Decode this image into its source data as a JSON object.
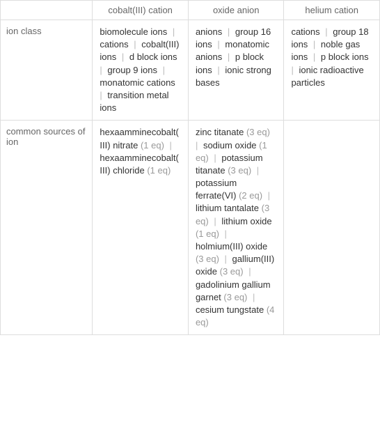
{
  "headers": {
    "col1": "cobalt(III) cation",
    "col2": "oxide anion",
    "col3": "helium cation"
  },
  "rows": {
    "ion_class": {
      "label": "ion class",
      "col1": [
        {
          "text": "biomolecule ions"
        },
        {
          "text": "cations"
        },
        {
          "text": "cobalt(III) ions"
        },
        {
          "text": "d block ions"
        },
        {
          "text": "group 9 ions"
        },
        {
          "text": "monatomic cations"
        },
        {
          "text": "transition metal ions"
        }
      ],
      "col2": [
        {
          "text": "anions"
        },
        {
          "text": "group 16 ions"
        },
        {
          "text": "monatomic anions"
        },
        {
          "text": "p block ions"
        },
        {
          "text": "ionic strong bases"
        }
      ],
      "col3": [
        {
          "text": "cations"
        },
        {
          "text": "group 18 ions"
        },
        {
          "text": "noble gas ions"
        },
        {
          "text": "p block ions"
        },
        {
          "text": "ionic radioactive particles"
        }
      ]
    },
    "common_sources": {
      "label": "common sources of ion",
      "col1": [
        {
          "text": "hexaamminecobalt(III) nitrate",
          "eq": "(1 eq)",
          "break": true
        },
        {
          "text": "hexaamminecobalt(III) chloride",
          "eq": "(1 eq)",
          "break": true
        }
      ],
      "col2": [
        {
          "text": "zinc titanate",
          "eq": "(3 eq)"
        },
        {
          "text": "sodium oxide",
          "eq": "(1 eq)"
        },
        {
          "text": "potassium titanate",
          "eq": "(3 eq)"
        },
        {
          "text": "potassium ferrate(VI)",
          "eq": "(2 eq)"
        },
        {
          "text": "lithium tantalate",
          "eq": "(3 eq)"
        },
        {
          "text": "lithium oxide",
          "eq": "(1 eq)"
        },
        {
          "text": "holmium(III) oxide",
          "eq": "(3 eq)"
        },
        {
          "text": "gallium(III) oxide",
          "eq": "(3 eq)"
        },
        {
          "text": "gadolinium gallium garnet",
          "eq": "(3 eq)"
        },
        {
          "text": "cesium tungstate",
          "eq": "(4 eq)"
        }
      ],
      "col3": []
    }
  },
  "colors": {
    "border": "#ddd",
    "header_text": "#666",
    "text": "#333",
    "sep": "#bbb",
    "eq": "#999",
    "bg": "#ffffff"
  }
}
